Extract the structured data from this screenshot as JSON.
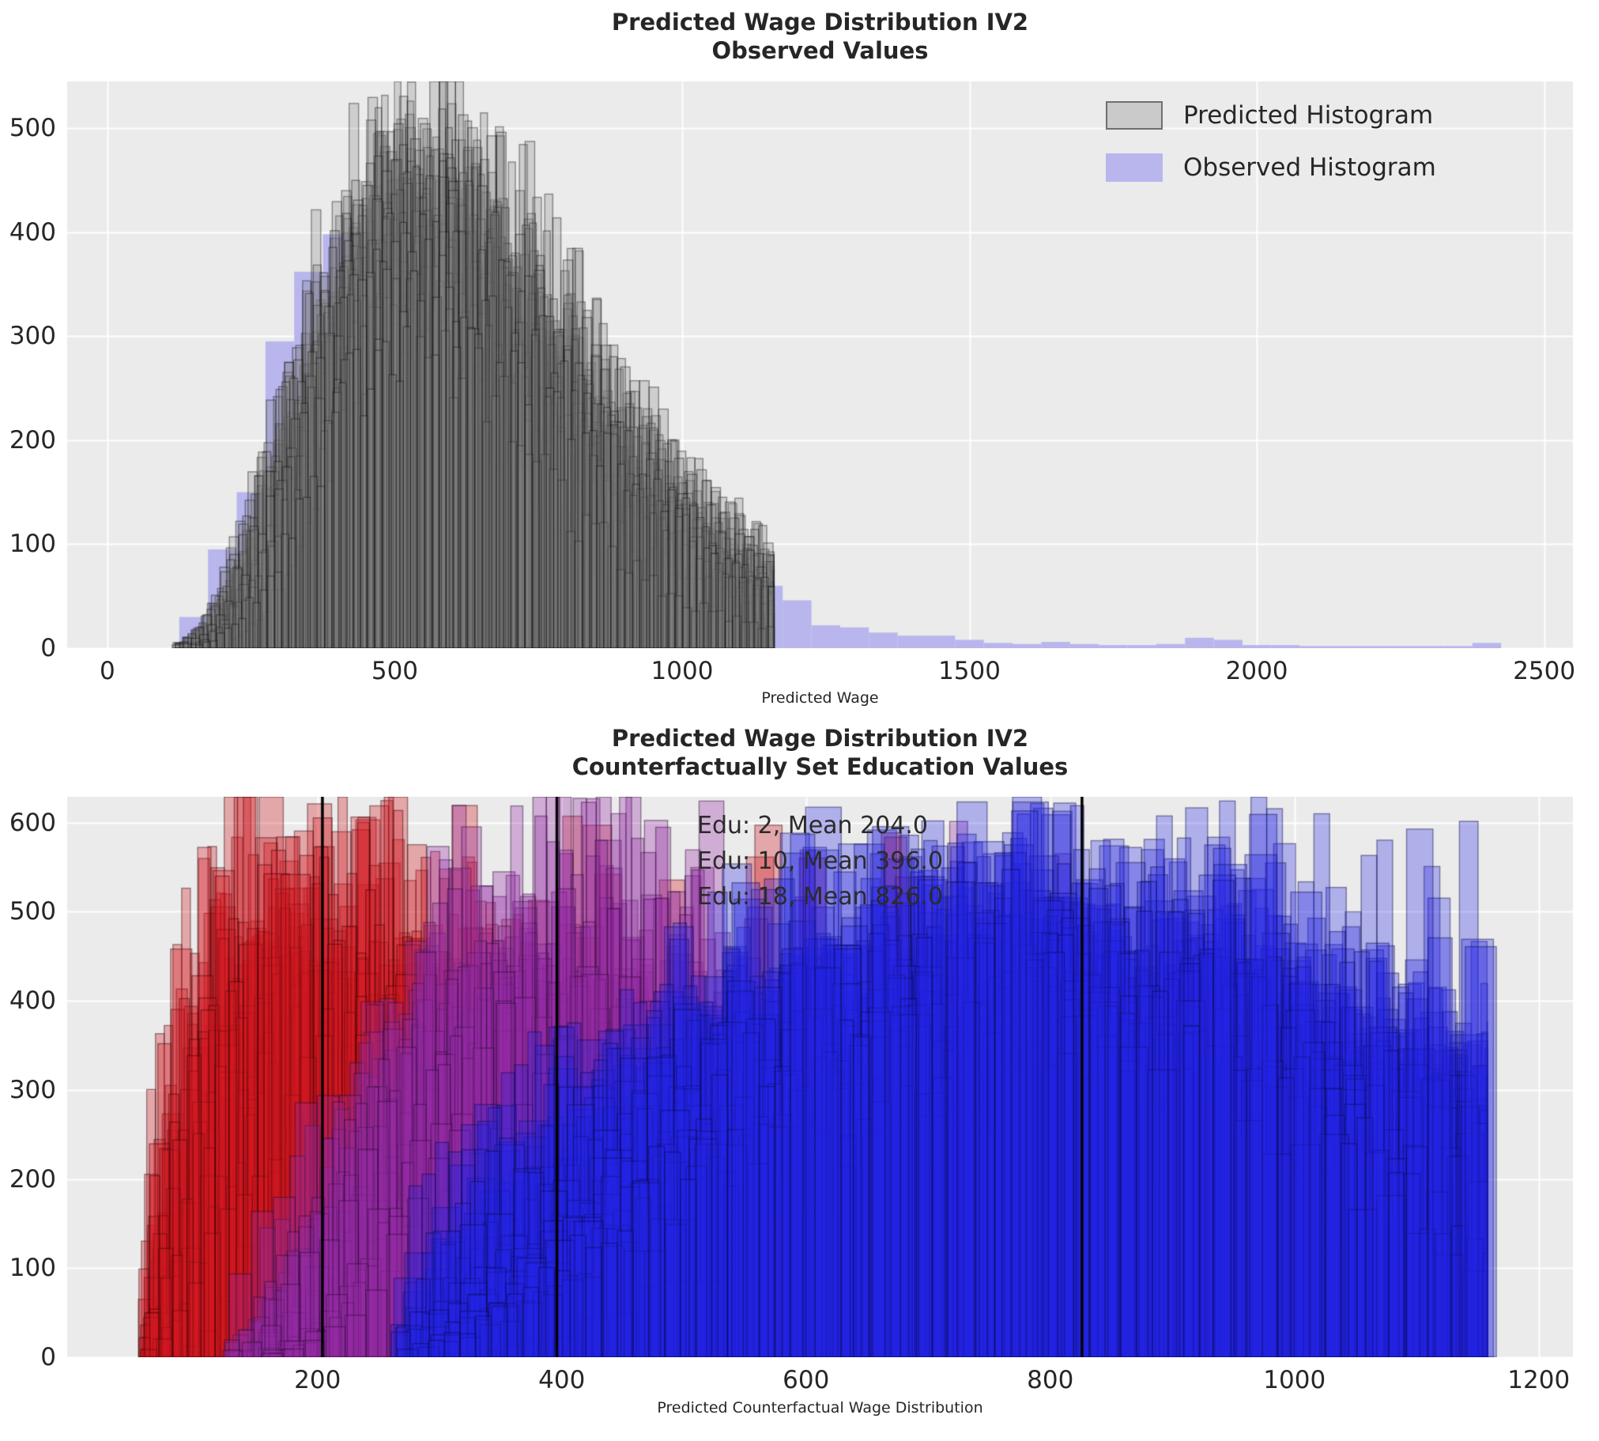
{
  "style": {
    "figure_bg": "#ffffff",
    "axes_bg": "#ebebeb",
    "grid_color": "#ffffff",
    "text_color": "#262626",
    "mean_line_color": "#000000"
  },
  "chart_data": [
    {
      "id": "observed-panel",
      "type": "histogram-overlay",
      "title_line1": "Predicted Wage Distribution IV2",
      "title_line2": "Observed Values",
      "xlabel": "Predicted Wage",
      "xlim": [
        -70,
        2550
      ],
      "ylim": [
        0,
        545
      ],
      "xticks": [
        0,
        500,
        1000,
        1500,
        2000,
        2500
      ],
      "yticks": [
        0,
        100,
        200,
        300,
        400,
        500
      ],
      "grid": true,
      "legend_position": "upper right",
      "legend": [
        {
          "label": "Predicted Histogram",
          "fill": "#cbcacb",
          "edge": "#6f6f6f"
        },
        {
          "label": "Observed Histogram",
          "fill": "#b8b6ec",
          "edge": "#b8b6ec"
        }
      ],
      "observed_hist": {
        "bin_start": 125,
        "bin_width": 50,
        "color": "#b8b6ec",
        "heights": [
          30,
          95,
          150,
          295,
          362,
          398,
          400,
          398,
          372,
          348,
          322,
          318,
          228,
          222,
          168,
          160,
          96,
          78,
          68,
          64,
          60,
          46,
          22,
          20,
          15,
          12,
          12,
          8,
          5,
          4,
          6,
          4,
          3,
          3,
          4,
          10,
          8,
          3,
          3,
          2,
          2,
          2,
          2,
          2,
          2,
          5
        ]
      },
      "predicted_ensemble": {
        "count": 30,
        "seed": 42,
        "fill": "rgba(128,128,128,0.27)",
        "edge": "rgba(15,15,15,0.42)",
        "bin_width_range": [
          11,
          17
        ],
        "mode_range": [
          470,
          620
        ],
        "sigma_range": [
          0.36,
          0.5
        ],
        "amp_range": [
          310,
          515
        ],
        "support": [
          85,
          1160
        ],
        "asym_right": 0.82,
        "tail_level": 0.13,
        "tail_max": 1150
      }
    },
    {
      "id": "counterfactual-panel",
      "type": "histogram-overlay",
      "title_line1": "Predicted Wage Distribution IV2",
      "title_line2": "Counterfactually Set Education Values",
      "xlabel": "Predicted Counterfactual Wage Distribution",
      "xlim": [
        -5,
        1228
      ],
      "ylim": [
        0,
        629
      ],
      "xticks": [
        200,
        400,
        600,
        800,
        1000,
        1200
      ],
      "yticks": [
        0,
        100,
        200,
        300,
        400,
        500,
        600
      ],
      "grid": true,
      "annotations": [
        "Edu: 2, Mean 204.0",
        "Edu: 10, Mean 396.0",
        "Edu: 18, Mean 826.0"
      ],
      "mean_lines": [
        204.0,
        396.0,
        826.0
      ],
      "groups": [
        {
          "edu": 2,
          "mean": 204.0,
          "fill": "rgba(210,25,35,0.32)",
          "edge": "rgba(50,0,0,0.45)",
          "count": 34,
          "seed": 7,
          "bin_width_range": [
            7,
            20
          ],
          "mode_range": [
            105,
            280
          ],
          "sigma_range": [
            0.32,
            0.6
          ],
          "amp_range": [
            260,
            630
          ],
          "support": [
            52,
            920
          ],
          "asym_right": 0.92,
          "spikes": {
            "count": 26,
            "x_range": [
              140,
              730
            ],
            "h_range": [
              380,
              629
            ],
            "w_range": [
              14,
              24
            ]
          }
        },
        {
          "edu": 10,
          "mean": 396.0,
          "fill": "rgba(148,42,164,0.32)",
          "edge": "rgba(40,8,48,0.45)",
          "count": 26,
          "seed": 13,
          "bin_width_range": [
            8,
            20
          ],
          "mode_range": [
            300,
            520
          ],
          "sigma_range": [
            0.28,
            0.5
          ],
          "amp_range": [
            260,
            620
          ],
          "support": [
            120,
            840
          ],
          "asym_right": 0.92,
          "spikes": {
            "count": 14,
            "x_range": [
              300,
              820
            ],
            "h_range": [
              380,
              629
            ],
            "w_range": [
              12,
              22
            ]
          }
        },
        {
          "edu": 18,
          "mean": 826.0,
          "fill": "rgba(38,38,228,0.30)",
          "edge": "rgba(8,8,70,0.45)",
          "count": 40,
          "seed": 99,
          "bin_width_range": [
            10,
            26
          ],
          "mode_range": [
            680,
            1000
          ],
          "sigma_range": [
            0.3,
            0.55
          ],
          "amp_range": [
            300,
            540
          ],
          "support": [
            260,
            1158
          ],
          "asym_left": 1.25,
          "asym_right": 0.7,
          "spikes": {
            "count": 30,
            "x_range": [
              480,
              1150
            ],
            "h_range": [
              420,
              630
            ],
            "w_range": [
              14,
              30
            ]
          }
        }
      ]
    }
  ]
}
